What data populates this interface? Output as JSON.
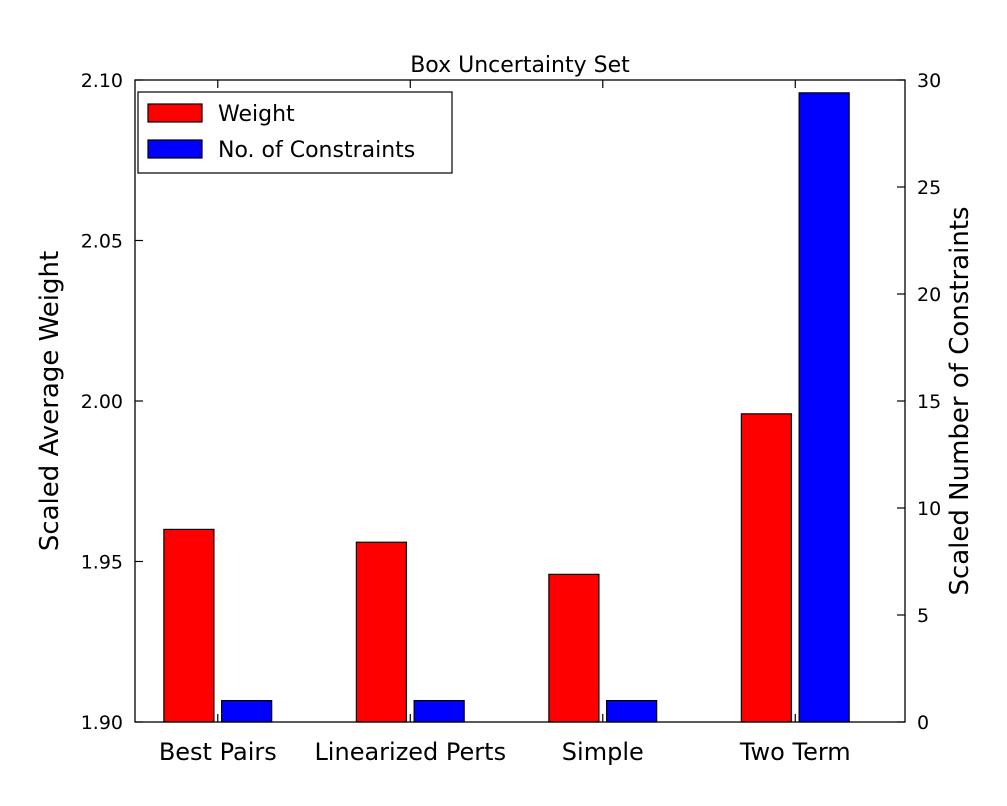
{
  "chart_data": {
    "type": "bar",
    "title": "Box Uncertainty Set",
    "categories": [
      "Best Pairs",
      "Linearized Perts",
      "Simple",
      "Two Term"
    ],
    "series": [
      {
        "name": "Weight",
        "axis": "left",
        "color": "#ff0000",
        "values": [
          1.96,
          1.956,
          1.946,
          1.996
        ]
      },
      {
        "name": "No. of Constraints",
        "axis": "right",
        "color": "#0000ff",
        "values": [
          1.0,
          1.0,
          1.0,
          29.4
        ]
      }
    ],
    "y_left": {
      "label": "Scaled Average Weight",
      "lim": [
        1.9,
        2.1
      ],
      "ticks": [
        1.9,
        1.95,
        2.0,
        2.05,
        2.1
      ],
      "tick_labels": [
        "1.90",
        "1.95",
        "2.00",
        "2.05",
        "2.10"
      ]
    },
    "y_right": {
      "label": "Scaled Number of Constraints",
      "lim": [
        0,
        30
      ],
      "ticks": [
        0,
        5,
        10,
        15,
        20,
        25,
        30
      ],
      "tick_labels": [
        "0",
        "5",
        "10",
        "15",
        "20",
        "25",
        "30"
      ]
    },
    "xlabel": "",
    "grid": false,
    "legend_position": "top-left"
  }
}
